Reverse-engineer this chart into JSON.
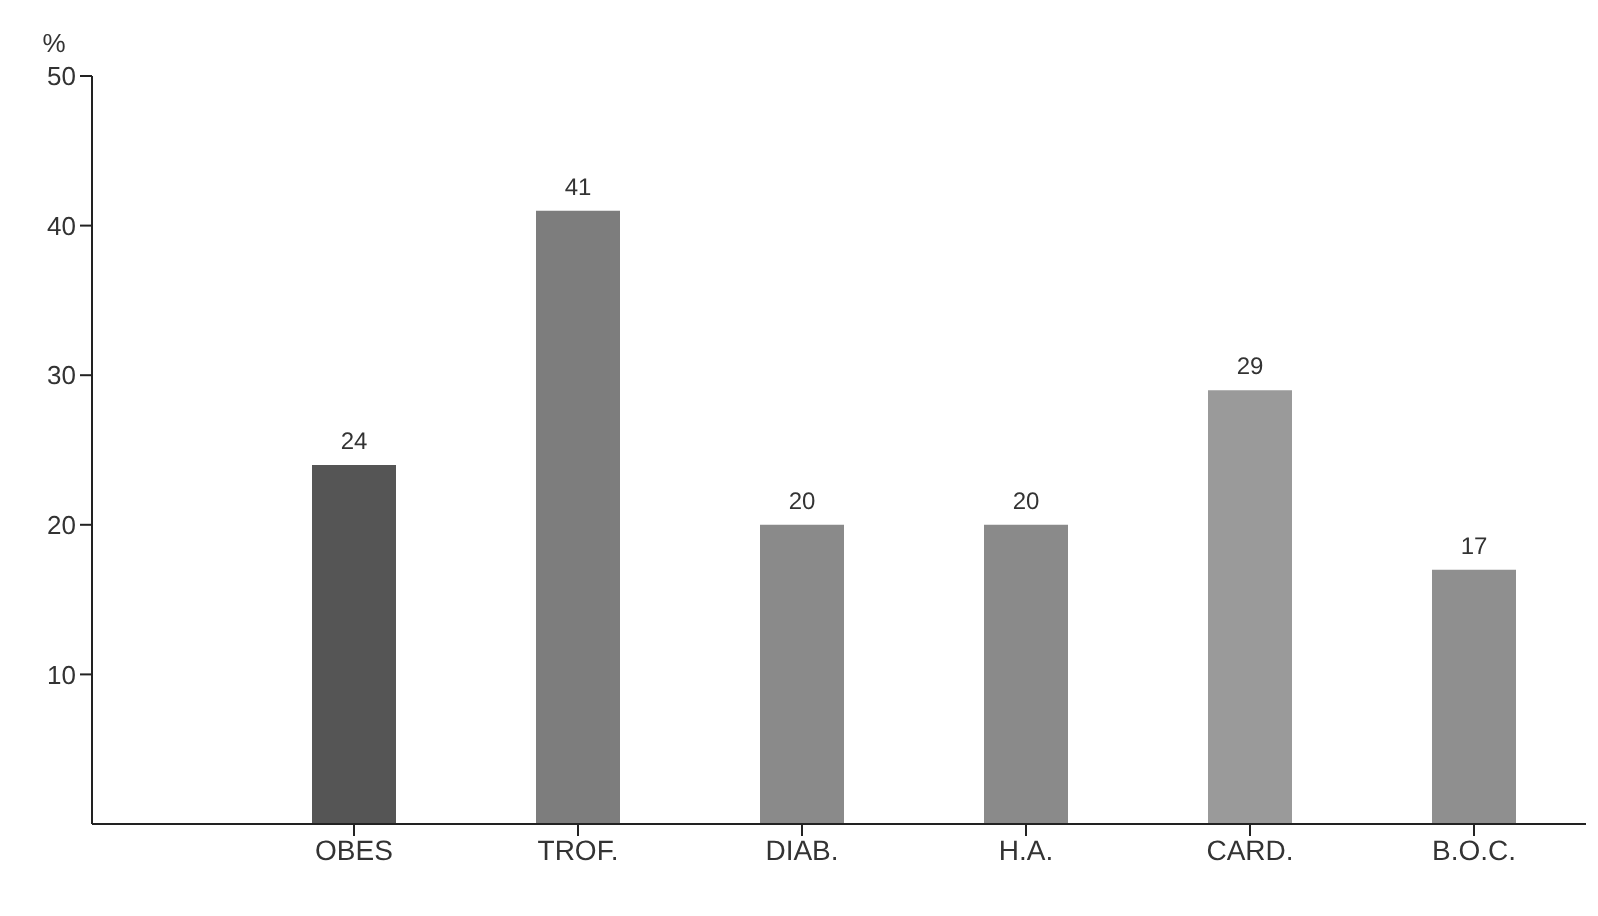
{
  "chart_data": {
    "type": "bar",
    "ylabel": "%",
    "categories": [
      "OBES",
      "TROF.",
      "DIAB.",
      "H.A.",
      "CARD.",
      "B.O.C."
    ],
    "values": [
      24,
      41,
      20,
      20,
      29,
      17
    ],
    "colors": [
      "#555555",
      "#7d7d7d",
      "#8a8a8a",
      "#8a8a8a",
      "#9a9a9a",
      "#8f8f8f"
    ],
    "ylim": [
      0,
      50
    ],
    "yticks": [
      10,
      20,
      30,
      40,
      50
    ],
    "data_labels": true,
    "grid": false
  }
}
